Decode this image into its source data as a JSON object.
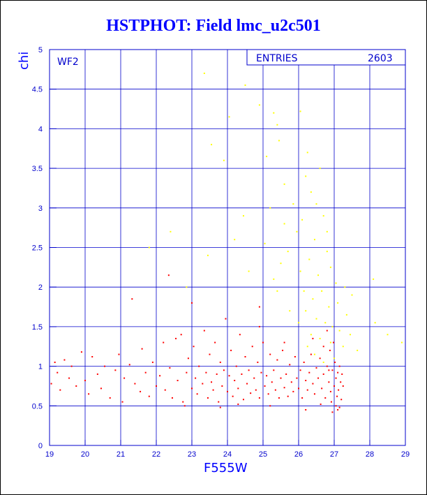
{
  "chart_data": {
    "type": "scatter",
    "title": "HSTPHOT: Field lmc_u2c501",
    "xlabel": "F555W",
    "ylabel": "chi",
    "xlim": [
      19,
      29
    ],
    "ylim": [
      0,
      5
    ],
    "xticks": [
      "19",
      "20",
      "21",
      "22",
      "23",
      "24",
      "25",
      "26",
      "27",
      "28",
      "29"
    ],
    "yticks": [
      "0",
      "0.5",
      "1",
      "1.5",
      "2",
      "2.5",
      "3",
      "3.5",
      "4",
      "4.5",
      "5"
    ],
    "grid": true,
    "panel_label": "WF2",
    "stats": {
      "label": "ENTRIES",
      "value": "2603"
    },
    "series_colors": [
      "#ff0000",
      "#ffff00"
    ],
    "series": [
      {
        "color": "#ff0000",
        "points": [
          [
            19.05,
            0.78
          ],
          [
            19.15,
            1.05
          ],
          [
            19.22,
            0.92
          ],
          [
            19.3,
            0.7
          ],
          [
            19.42,
            1.08
          ],
          [
            19.55,
            0.85
          ],
          [
            19.62,
            1.0
          ],
          [
            19.75,
            0.75
          ],
          [
            19.9,
            1.18
          ],
          [
            20.0,
            0.82
          ],
          [
            20.1,
            0.65
          ],
          [
            20.2,
            1.12
          ],
          [
            20.35,
            0.9
          ],
          [
            20.45,
            0.72
          ],
          [
            20.55,
            1.0
          ],
          [
            20.7,
            0.6
          ],
          [
            20.85,
            0.95
          ],
          [
            20.95,
            1.15
          ],
          [
            21.05,
            0.55
          ],
          [
            21.1,
            0.85
          ],
          [
            21.25,
            1.02
          ],
          [
            21.32,
            1.85
          ],
          [
            21.4,
            0.78
          ],
          [
            21.55,
            0.68
          ],
          [
            21.6,
            1.22
          ],
          [
            21.7,
            0.92
          ],
          [
            21.8,
            0.62
          ],
          [
            21.9,
            1.05
          ],
          [
            22.0,
            0.75
          ],
          [
            22.1,
            0.88
          ],
          [
            22.2,
            1.3
          ],
          [
            22.25,
            0.7
          ],
          [
            22.35,
            2.15
          ],
          [
            22.38,
            0.98
          ],
          [
            22.45,
            0.6
          ],
          [
            22.55,
            1.35
          ],
          [
            22.6,
            0.82
          ],
          [
            22.7,
            1.4
          ],
          [
            22.75,
            0.55
          ],
          [
            22.85,
            0.92
          ],
          [
            22.9,
            1.1
          ],
          [
            23.0,
            0.72
          ],
          [
            23.05,
            1.25
          ],
          [
            23.1,
            0.85
          ],
          [
            23.15,
            0.65
          ],
          [
            23.2,
            1.0
          ],
          [
            23.3,
            0.78
          ],
          [
            23.35,
            1.45
          ],
          [
            23.4,
            0.92
          ],
          [
            23.45,
            0.6
          ],
          [
            23.5,
            1.15
          ],
          [
            23.55,
            0.8
          ],
          [
            23.6,
            0.7
          ],
          [
            23.65,
            1.3
          ],
          [
            23.7,
            0.9
          ],
          [
            23.75,
            0.55
          ],
          [
            23.8,
            1.05
          ],
          [
            23.85,
            0.75
          ],
          [
            23.9,
            0.95
          ],
          [
            23.95,
            1.6
          ],
          [
            24.0,
            0.68
          ],
          [
            24.05,
            0.88
          ],
          [
            24.1,
            1.2
          ],
          [
            24.15,
            0.62
          ],
          [
            24.2,
            0.82
          ],
          [
            24.25,
            1.0
          ],
          [
            24.3,
            0.72
          ],
          [
            24.35,
            1.4
          ],
          [
            24.4,
            0.9
          ],
          [
            24.45,
            0.58
          ],
          [
            24.5,
            1.12
          ],
          [
            24.55,
            0.78
          ],
          [
            24.6,
            0.95
          ],
          [
            24.65,
            0.66
          ],
          [
            24.7,
            1.25
          ],
          [
            24.75,
            0.85
          ],
          [
            24.8,
            0.7
          ],
          [
            24.85,
            1.05
          ],
          [
            24.9,
            0.6
          ],
          [
            24.95,
            0.92
          ],
          [
            25.0,
            1.3
          ],
          [
            25.05,
            0.75
          ],
          [
            25.1,
            0.88
          ],
          [
            25.15,
            0.65
          ],
          [
            25.2,
            1.15
          ],
          [
            25.25,
            0.8
          ],
          [
            25.3,
            0.95
          ],
          [
            25.35,
            0.7
          ],
          [
            25.4,
            1.08
          ],
          [
            25.45,
            0.6
          ],
          [
            25.5,
            0.85
          ],
          [
            25.55,
            1.2
          ],
          [
            25.6,
            0.73
          ],
          [
            25.65,
            0.9
          ],
          [
            25.7,
            0.62
          ],
          [
            25.75,
            1.02
          ],
          [
            25.8,
            0.8
          ],
          [
            25.85,
            0.68
          ],
          [
            25.9,
            1.12
          ],
          [
            25.95,
            0.85
          ],
          [
            26.0,
            0.72
          ],
          [
            26.05,
            0.95
          ],
          [
            26.1,
            0.6
          ],
          [
            26.15,
            1.05
          ],
          [
            26.2,
            0.82
          ],
          [
            26.25,
            0.7
          ],
          [
            26.3,
            0.92
          ],
          [
            26.35,
            1.15
          ],
          [
            26.4,
            0.78
          ],
          [
            26.45,
            0.65
          ],
          [
            26.5,
            0.98
          ],
          [
            26.55,
            0.85
          ],
          [
            26.6,
            1.1
          ],
          [
            26.65,
            0.72
          ],
          [
            26.7,
            0.9
          ],
          [
            26.75,
            0.6
          ],
          [
            26.8,
            1.0
          ],
          [
            26.85,
            0.8
          ],
          [
            26.9,
            0.68
          ],
          [
            26.95,
            0.95
          ],
          [
            27.0,
            0.75
          ],
          [
            27.02,
            1.05
          ],
          [
            27.05,
            0.85
          ],
          [
            27.08,
            0.62
          ],
          [
            27.1,
            0.92
          ],
          [
            27.12,
            0.7
          ],
          [
            27.15,
            1.0
          ],
          [
            27.18,
            0.8
          ],
          [
            27.2,
            0.58
          ],
          [
            27.22,
            0.9
          ],
          [
            27.25,
            0.75
          ],
          [
            26.88,
            1.2
          ],
          [
            26.92,
            0.55
          ],
          [
            27.05,
            0.5
          ],
          [
            27.15,
            0.48
          ],
          [
            26.98,
            1.3
          ],
          [
            26.7,
            1.25
          ],
          [
            26.62,
            0.52
          ],
          [
            25.2,
            0.5
          ],
          [
            24.3,
            0.52
          ],
          [
            23.8,
            0.48
          ],
          [
            22.8,
            0.5
          ],
          [
            26.4,
            1.35
          ],
          [
            26.8,
            1.45
          ],
          [
            25.6,
            1.3
          ],
          [
            24.9,
            1.5
          ],
          [
            23.0,
            1.8
          ],
          [
            24.9,
            1.75
          ],
          [
            26.2,
            0.45
          ],
          [
            26.95,
            0.42
          ],
          [
            27.1,
            0.45
          ],
          [
            26.85,
            0.95
          ]
        ]
      },
      {
        "color": "#ffff00",
        "points": [
          [
            23.35,
            4.7
          ],
          [
            23.55,
            3.8
          ],
          [
            24.05,
            4.15
          ],
          [
            24.5,
            4.55
          ],
          [
            24.9,
            4.3
          ],
          [
            25.3,
            4.2
          ],
          [
            25.4,
            4.05
          ],
          [
            26.05,
            4.22
          ],
          [
            25.45,
            3.85
          ],
          [
            25.1,
            3.65
          ],
          [
            25.6,
            3.3
          ],
          [
            25.85,
            3.05
          ],
          [
            26.2,
            3.4
          ],
          [
            26.35,
            3.2
          ],
          [
            26.5,
            3.05
          ],
          [
            26.1,
            2.85
          ],
          [
            25.95,
            2.7
          ],
          [
            26.45,
            2.6
          ],
          [
            26.7,
            2.9
          ],
          [
            26.8,
            2.45
          ],
          [
            26.3,
            2.35
          ],
          [
            26.05,
            2.2
          ],
          [
            25.7,
            2.45
          ],
          [
            25.5,
            2.3
          ],
          [
            25.3,
            2.1
          ],
          [
            26.55,
            2.15
          ],
          [
            26.9,
            2.25
          ],
          [
            27.05,
            2.05
          ],
          [
            26.15,
            1.95
          ],
          [
            26.4,
            1.85
          ],
          [
            26.65,
            1.95
          ],
          [
            26.85,
            1.75
          ],
          [
            27.1,
            1.8
          ],
          [
            26.2,
            1.7
          ],
          [
            26.5,
            1.6
          ],
          [
            26.75,
            1.55
          ],
          [
            26.95,
            1.5
          ],
          [
            27.15,
            1.45
          ],
          [
            27.35,
            1.65
          ],
          [
            27.5,
            1.9
          ],
          [
            28.1,
            2.1
          ],
          [
            28.15,
            1.55
          ],
          [
            28.5,
            1.4
          ],
          [
            28.9,
            1.3
          ],
          [
            27.65,
            1.2
          ],
          [
            26.35,
            1.4
          ],
          [
            26.6,
            1.35
          ],
          [
            26.9,
            1.3
          ],
          [
            21.8,
            2.5
          ],
          [
            22.4,
            2.7
          ],
          [
            22.85,
            2.0
          ],
          [
            23.45,
            2.4
          ],
          [
            24.2,
            2.6
          ],
          [
            24.6,
            2.2
          ],
          [
            25.05,
            2.55
          ],
          [
            25.4,
            1.95
          ],
          [
            25.75,
            1.7
          ],
          [
            26.0,
            1.55
          ],
          [
            26.25,
            1.25
          ],
          [
            26.45,
            1.15
          ],
          [
            26.7,
            1.05
          ],
          [
            27.0,
            1.1
          ],
          [
            27.25,
            1.25
          ],
          [
            27.45,
            1.4
          ],
          [
            25.2,
            3.0
          ],
          [
            25.6,
            2.8
          ],
          [
            26.6,
            3.5
          ],
          [
            26.25,
            3.7
          ],
          [
            24.45,
            2.9
          ],
          [
            23.9,
            3.6
          ],
          [
            26.8,
            2.7
          ],
          [
            27.3,
            2.0
          ]
        ]
      }
    ]
  }
}
